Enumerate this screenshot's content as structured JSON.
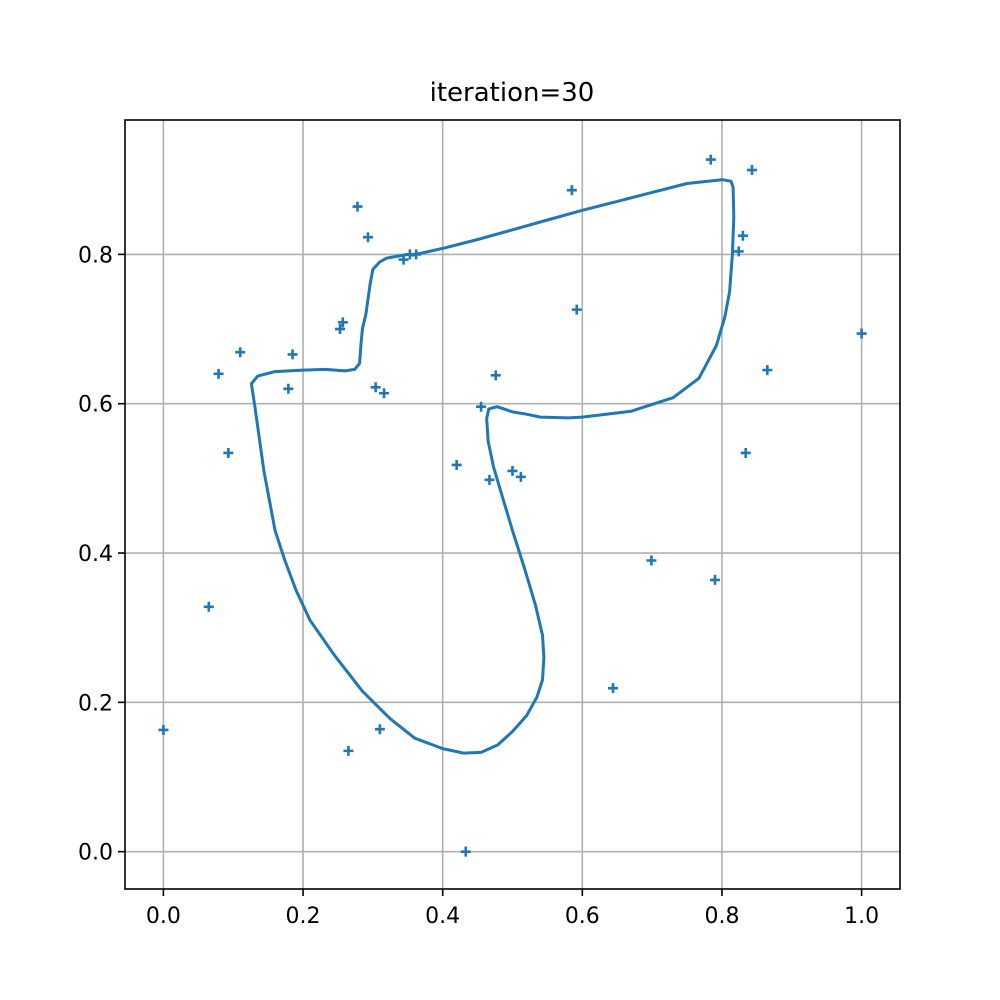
{
  "chart_data": {
    "type": "scatter",
    "title": "iteration=30",
    "xlabel": "",
    "ylabel": "",
    "xlim": [
      -0.055,
      1.055
    ],
    "ylim": [
      -0.05,
      0.98
    ],
    "grid": true,
    "x_ticks": [
      0.0,
      0.2,
      0.4,
      0.6,
      0.8,
      1.0
    ],
    "y_ticks": [
      0.0,
      0.2,
      0.4,
      0.6,
      0.8
    ],
    "x_tick_labels": [
      "0.0",
      "0.2",
      "0.4",
      "0.6",
      "0.8",
      "1.0"
    ],
    "y_tick_labels": [
      "0.0",
      "0.2",
      "0.4",
      "0.6",
      "0.8"
    ],
    "color": "#1f77b4",
    "points": [
      {
        "x": 0.0,
        "y": 0.163
      },
      {
        "x": 0.065,
        "y": 0.328
      },
      {
        "x": 0.079,
        "y": 0.64
      },
      {
        "x": 0.093,
        "y": 0.534
      },
      {
        "x": 0.11,
        "y": 0.669
      },
      {
        "x": 0.179,
        "y": 0.62
      },
      {
        "x": 0.185,
        "y": 0.666
      },
      {
        "x": 0.253,
        "y": 0.7
      },
      {
        "x": 0.257,
        "y": 0.709
      },
      {
        "x": 0.265,
        "y": 0.135
      },
      {
        "x": 0.278,
        "y": 0.864
      },
      {
        "x": 0.293,
        "y": 0.823
      },
      {
        "x": 0.304,
        "y": 0.622
      },
      {
        "x": 0.31,
        "y": 0.164
      },
      {
        "x": 0.316,
        "y": 0.614
      },
      {
        "x": 0.344,
        "y": 0.793
      },
      {
        "x": 0.353,
        "y": 0.8
      },
      {
        "x": 0.362,
        "y": 0.8
      },
      {
        "x": 0.42,
        "y": 0.518
      },
      {
        "x": 0.433,
        "y": 0.0
      },
      {
        "x": 0.455,
        "y": 0.596
      },
      {
        "x": 0.467,
        "y": 0.498
      },
      {
        "x": 0.476,
        "y": 0.638
      },
      {
        "x": 0.5,
        "y": 0.51
      },
      {
        "x": 0.512,
        "y": 0.502
      },
      {
        "x": 0.585,
        "y": 0.886
      },
      {
        "x": 0.592,
        "y": 0.726
      },
      {
        "x": 0.644,
        "y": 0.219
      },
      {
        "x": 0.699,
        "y": 0.39
      },
      {
        "x": 0.784,
        "y": 0.927
      },
      {
        "x": 0.79,
        "y": 0.364
      },
      {
        "x": 0.824,
        "y": 0.804
      },
      {
        "x": 0.83,
        "y": 0.825
      },
      {
        "x": 0.834,
        "y": 0.534
      },
      {
        "x": 0.843,
        "y": 0.913
      },
      {
        "x": 0.865,
        "y": 0.645
      },
      {
        "x": 1.0,
        "y": 0.694
      }
    ],
    "path": [
      [
        0.357,
        0.799
      ],
      [
        0.4,
        0.808
      ],
      [
        0.45,
        0.82
      ],
      [
        0.5,
        0.833
      ],
      [
        0.55,
        0.846
      ],
      [
        0.6,
        0.859
      ],
      [
        0.65,
        0.871
      ],
      [
        0.7,
        0.883
      ],
      [
        0.75,
        0.895
      ],
      [
        0.8,
        0.9
      ],
      [
        0.813,
        0.898
      ],
      [
        0.816,
        0.89
      ],
      [
        0.817,
        0.85
      ],
      [
        0.815,
        0.8
      ],
      [
        0.811,
        0.75
      ],
      [
        0.804,
        0.716
      ],
      [
        0.792,
        0.678
      ],
      [
        0.767,
        0.634
      ],
      [
        0.73,
        0.608
      ],
      [
        0.67,
        0.59
      ],
      [
        0.6,
        0.582
      ],
      [
        0.58,
        0.581
      ],
      [
        0.54,
        0.582
      ],
      [
        0.52,
        0.586
      ],
      [
        0.5,
        0.589
      ],
      [
        0.478,
        0.596
      ],
      [
        0.466,
        0.593
      ],
      [
        0.463,
        0.58
      ],
      [
        0.465,
        0.55
      ],
      [
        0.473,
        0.515
      ],
      [
        0.485,
        0.477
      ],
      [
        0.5,
        0.43
      ],
      [
        0.517,
        0.38
      ],
      [
        0.533,
        0.33
      ],
      [
        0.543,
        0.29
      ],
      [
        0.545,
        0.26
      ],
      [
        0.543,
        0.23
      ],
      [
        0.535,
        0.207
      ],
      [
        0.52,
        0.182
      ],
      [
        0.5,
        0.161
      ],
      [
        0.479,
        0.143
      ],
      [
        0.455,
        0.133
      ],
      [
        0.43,
        0.132
      ],
      [
        0.4,
        0.138
      ],
      [
        0.36,
        0.152
      ],
      [
        0.325,
        0.178
      ],
      [
        0.285,
        0.215
      ],
      [
        0.245,
        0.263
      ],
      [
        0.21,
        0.31
      ],
      [
        0.19,
        0.35
      ],
      [
        0.174,
        0.39
      ],
      [
        0.16,
        0.43
      ],
      [
        0.152,
        0.47
      ],
      [
        0.144,
        0.51
      ],
      [
        0.137,
        0.556
      ],
      [
        0.131,
        0.596
      ],
      [
        0.126,
        0.627
      ],
      [
        0.135,
        0.637
      ],
      [
        0.16,
        0.643
      ],
      [
        0.2,
        0.645
      ],
      [
        0.232,
        0.646
      ],
      [
        0.26,
        0.644
      ],
      [
        0.274,
        0.646
      ],
      [
        0.281,
        0.654
      ],
      [
        0.283,
        0.68
      ],
      [
        0.285,
        0.7
      ],
      [
        0.29,
        0.72
      ],
      [
        0.296,
        0.76
      ],
      [
        0.3,
        0.78
      ],
      [
        0.31,
        0.79
      ],
      [
        0.32,
        0.795
      ],
      [
        0.35,
        0.8
      ],
      [
        0.357,
        0.799
      ]
    ]
  }
}
